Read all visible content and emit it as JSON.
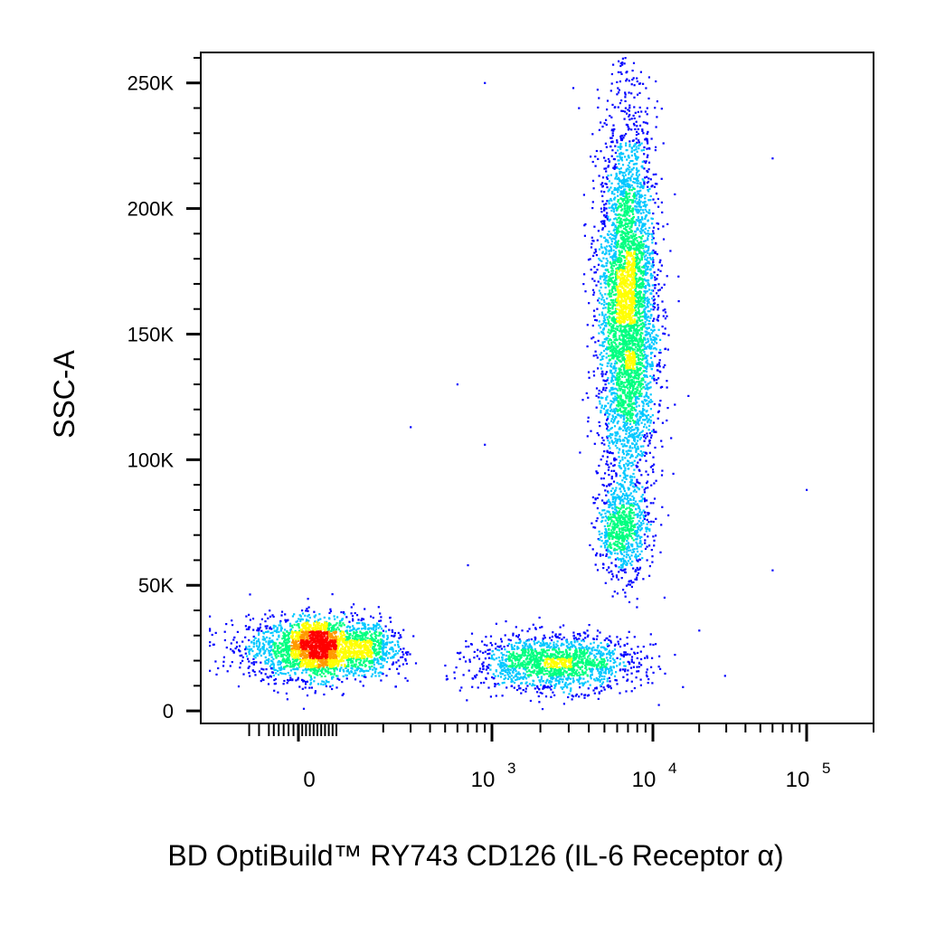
{
  "chart_data": {
    "type": "scatter",
    "title": "",
    "xlabel": "BD OptiBuild™ RY743 CD126 (IL-6 Receptor α)",
    "ylabel": "SSC-A",
    "x_scale": "biexponential",
    "xlim": [
      -180,
      200000
    ],
    "ylim": [
      -5000,
      262144
    ],
    "y_ticks": [
      {
        "value": 0,
        "label": "0"
      },
      {
        "value": 50000,
        "label": "50K"
      },
      {
        "value": 100000,
        "label": "100K"
      },
      {
        "value": 150000,
        "label": "150K"
      },
      {
        "value": 200000,
        "label": "200K"
      },
      {
        "value": 250000,
        "label": "250K"
      }
    ],
    "x_ticks": [
      {
        "value": 0,
        "base": "0",
        "exp": ""
      },
      {
        "value": 1000,
        "base": "10",
        "exp": "3"
      },
      {
        "value": 10000,
        "base": "10",
        "exp": "4"
      },
      {
        "value": 100000,
        "base": "10",
        "exp": "5"
      }
    ],
    "colormap": [
      "#0000ff",
      "#00c8ff",
      "#00ff80",
      "#ffff00",
      "#ff9900",
      "#ff0000"
    ],
    "populations": [
      {
        "name": "",
        "x_center": 60,
        "x_spread_decades": 0.0,
        "y_center": 25000,
        "y_spread": 6000,
        "count": 2800
      },
      {
        "name": "",
        "x_center": 2500,
        "x_spread_decades": 0.25,
        "y_center": 19000,
        "y_spread": 5500,
        "count": 1600
      },
      {
        "name": "",
        "x_center": 7000,
        "x_spread_decades": 0.09,
        "y_center": 160000,
        "y_spread": 38000,
        "count": 4200
      },
      {
        "name": "",
        "x_center": 6500,
        "x_spread_decades": 0.08,
        "y_center": 72000,
        "y_spread": 9000,
        "count": 700
      }
    ],
    "outliers": [
      {
        "x": 3200,
        "y": 248000
      },
      {
        "x": 60000,
        "y": 220000
      },
      {
        "x": 600,
        "y": 130000
      },
      {
        "x": 300,
        "y": 113000
      },
      {
        "x": 900,
        "y": 106000
      },
      {
        "x": 60000,
        "y": 56000
      },
      {
        "x": 100000,
        "y": 88000
      },
      {
        "x": 700,
        "y": 58000
      },
      {
        "x": 20000,
        "y": 32000
      },
      {
        "x": 900,
        "y": 250000
      }
    ]
  }
}
